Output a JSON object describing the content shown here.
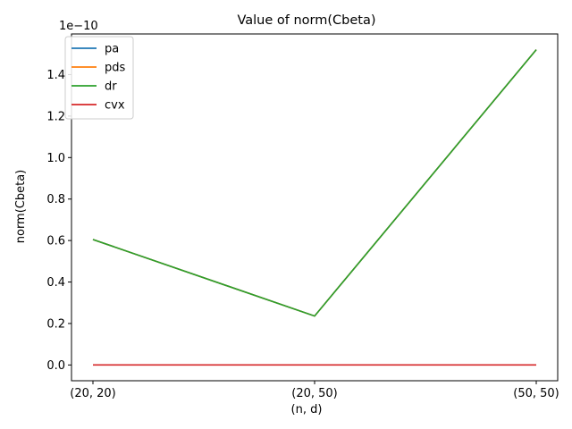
{
  "chart_data": {
    "type": "line",
    "title": "Value of norm(Cbeta)",
    "xlabel": "(n, d)",
    "ylabel": "norm(Cbeta)",
    "y_offset_label": "1e−10",
    "categories": [
      "(20, 20)",
      "(20, 50)",
      "(50, 50)"
    ],
    "y_ticks": [
      "0.0",
      "0.2",
      "0.4",
      "0.6",
      "0.8",
      "1.0",
      "1.2",
      "1.4"
    ],
    "y_tick_values": [
      0.0,
      0.2,
      0.4,
      0.6,
      0.8,
      1.0,
      1.2,
      1.4
    ],
    "ylim": [
      -0.076,
      1.596
    ],
    "y_unit_scale": "1e-10",
    "grid": false,
    "legend_position": "upper-left",
    "series": [
      {
        "name": "pa",
        "color": "#1f77b4",
        "values": [
          0.605,
          0.236,
          1.52
        ]
      },
      {
        "name": "pds",
        "color": "#ff7f0e",
        "values": [
          0.605,
          0.236,
          1.52
        ]
      },
      {
        "name": "dr",
        "color": "#2ca02c",
        "values": [
          0.605,
          0.236,
          1.52
        ]
      },
      {
        "name": "cvx",
        "color": "#d62728",
        "values": [
          0.0,
          0.0,
          0.0
        ]
      }
    ]
  }
}
